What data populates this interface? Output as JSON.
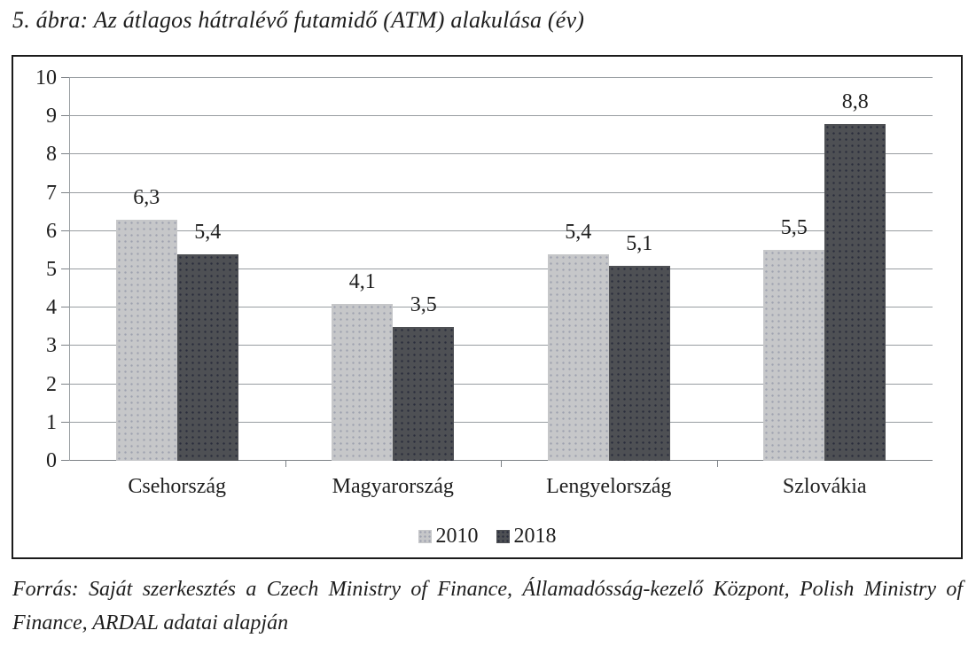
{
  "title": "5. ábra: Az átlagos hátralévő futamidő (ATM) alakulása (év)",
  "source": {
    "line1": "Forrás: Saját szerkesztés a Czech Ministry of Finance, Államadósság-kezelő Központ, Polish Ministry of",
    "line2": "Finance, ARDAL adatai alapján"
  },
  "chart_data": {
    "type": "bar",
    "title": "5. ábra: Az átlagos hátralévő futamidő (ATM) alakulása (év)",
    "categories": [
      "Csehország",
      "Magyarország",
      "Lengyelország",
      "Szlovákia"
    ],
    "series": [
      {
        "name": "2010",
        "color": "#c6c7c9",
        "values": [
          6.3,
          4.1,
          5.4,
          5.5
        ],
        "value_labels": [
          "6,3",
          "4,1",
          "5,4",
          "5,5"
        ]
      },
      {
        "name": "2018",
        "color": "#4e5054",
        "values": [
          5.4,
          3.5,
          5.1,
          8.8
        ],
        "value_labels": [
          "5,4",
          "3,5",
          "5,1",
          "8,8"
        ]
      }
    ],
    "ylim": [
      0,
      10
    ],
    "yticks": [
      "0",
      "1",
      "2",
      "3",
      "4",
      "5",
      "6",
      "7",
      "8",
      "9",
      "10"
    ],
    "grid": true,
    "legend_position": "bottom-center",
    "xlabel": "",
    "ylabel": "",
    "decimal_separator": ","
  },
  "colors": {
    "bar_2010": "#c6c7c9",
    "bar_2018": "#4e5054",
    "gridline": "#989da1",
    "axis": "#7c8186",
    "frame": "#1b1b1b",
    "text": "#1e1e1e",
    "background": "#ffffff"
  }
}
